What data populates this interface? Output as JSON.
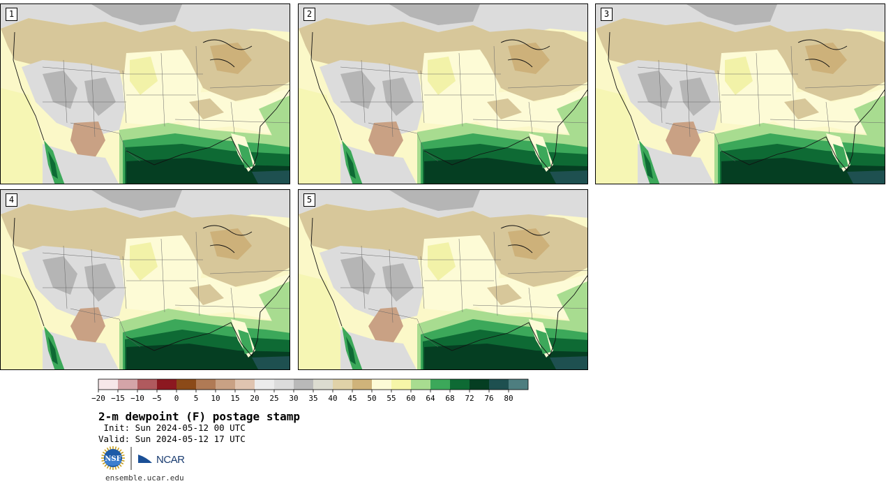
{
  "title": "2-m dewpoint (F) postage stamp",
  "init": " Init: Sun 2024-05-12 00 UTC",
  "valid": "Valid: Sun 2024-05-12 17 UTC",
  "website": "ensemble.ucar.edu",
  "logos": {
    "nsf_text": "NSF",
    "ncar_text": "NCAR"
  },
  "members": [
    {
      "label": "1"
    },
    {
      "label": "2"
    },
    {
      "label": "3"
    },
    {
      "label": "4"
    },
    {
      "label": "5"
    }
  ],
  "colorbar": {
    "tick_labels": [
      "−20",
      "−15",
      "−10",
      "−5",
      "0",
      "5",
      "10",
      "15",
      "20",
      "25",
      "30",
      "35",
      "40",
      "45",
      "50",
      "55",
      "60",
      "64",
      "68",
      "72",
      "76",
      "80"
    ],
    "colors": [
      "#f6e7e9",
      "#d4a4a8",
      "#b05a5e",
      "#8c1820",
      "#8b4a18",
      "#b07a55",
      "#c9a184",
      "#e0c4b0",
      "#ececec",
      "#dcdcdc",
      "#b9b9b9",
      "#dcdcd0",
      "#e0d2a8",
      "#cfb37a",
      "#fdfbd6",
      "#f6f6a8",
      "#a8dc90",
      "#3ca85a",
      "#0e6a34",
      "#053e22",
      "#1e5050",
      "#4e7e80"
    ]
  },
  "map_colors": {
    "ocean": "#fbf8c8",
    "ocean_far": "#f6f6b4",
    "land_moist": "#fdfbd6",
    "land_mid": "#d7c79a",
    "land_dry": "#cdb17a",
    "dry_gray": "#dcdcdc",
    "dry_darkgray": "#b5b5b5",
    "desert_brown": "#c9a184",
    "green_light": "#a8dc90",
    "green_mid": "#3ca85a",
    "green_dark": "#0e6a34",
    "green_darkest": "#053e22",
    "teal": "#1e5050"
  }
}
